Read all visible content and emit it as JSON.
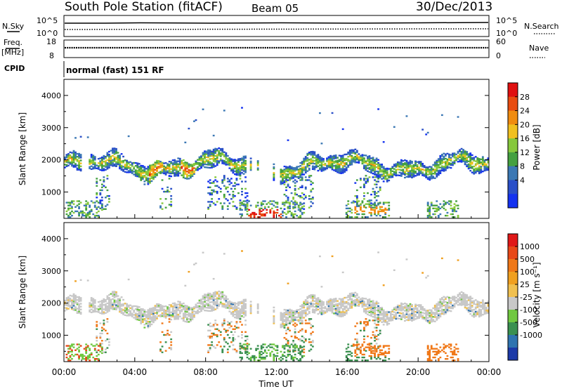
{
  "header": {
    "title": "South Pole Station (fitACF)",
    "beam": "Beam 05",
    "date": "30/Dec/2013"
  },
  "top_panels": {
    "nsky_label": "N.Sky",
    "nsearch_label": "N.Search",
    "noise_ticks": [
      "10^5",
      "10^0"
    ],
    "freq_label": "Freq.",
    "freq_unit": "[MHz]",
    "freq_ticks": [
      "18",
      "8"
    ],
    "nave_label": "Nave",
    "nave_ticks": [
      "60",
      "0"
    ],
    "cpid_label": "CPID",
    "cpid_value": "normal (fast) 151 RF"
  },
  "chart_data": [
    {
      "type": "heatmap",
      "panel": "power",
      "ylabel": "Slant Range [km]",
      "xlabel": "",
      "ylim": [
        180,
        4500
      ],
      "yticks": [
        "4000",
        "3000",
        "2000",
        "1000"
      ],
      "xlim_hours": [
        0,
        24
      ],
      "colorbar": {
        "label": "Power [dB]",
        "ticks": [
          "28",
          "24",
          "20",
          "16",
          "12",
          "8",
          "4"
        ],
        "colors": [
          "#1432f0",
          "#2a4fc8",
          "#3b78b4",
          "#44a040",
          "#86c83c",
          "#f0c020",
          "#f08c10",
          "#e84c10",
          "#e01010"
        ],
        "range": [
          0,
          32
        ]
      }
    },
    {
      "type": "heatmap",
      "panel": "velocity",
      "ylabel": "Slant Range [km]",
      "xlabel": "Time UT",
      "ylim": [
        180,
        4500
      ],
      "yticks": [
        "4000",
        "3000",
        "2000",
        "1000"
      ],
      "xticks": [
        "00:00",
        "04:00",
        "08:00",
        "12:00",
        "16:00",
        "20:00",
        "00:00"
      ],
      "xlim_hours": [
        0,
        24
      ],
      "colorbar": {
        "label": "Velocity [m s⁻¹]",
        "ticks": [
          "1000",
          "500",
          "100",
          "25",
          "-25",
          "-100",
          "-500",
          "-1000"
        ],
        "colors": [
          "#1c3aa8",
          "#2f74b0",
          "#3a9050",
          "#70c840",
          "#c8c8c8",
          "#f0c050",
          "#f0a020",
          "#f07818",
          "#e84818",
          "#e01818"
        ]
      }
    }
  ]
}
